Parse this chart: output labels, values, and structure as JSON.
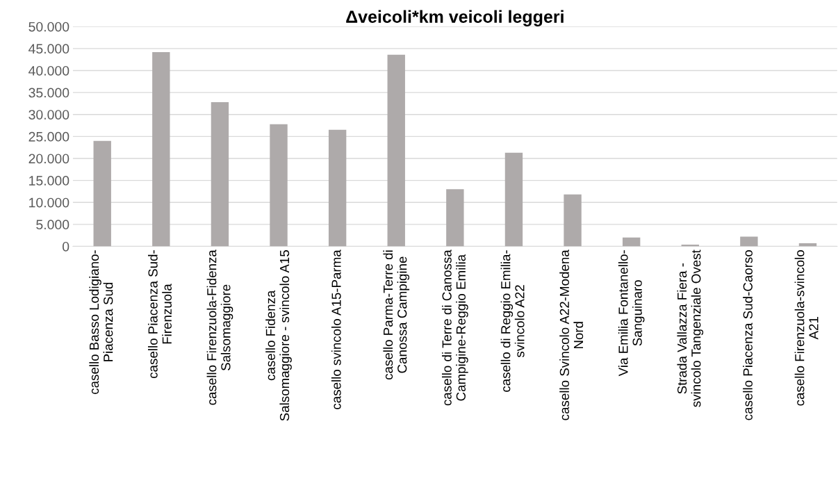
{
  "chart_data": {
    "type": "bar",
    "title": "Δveicoli*km veicoli leggeri",
    "categories": [
      "casello Basso Lodigiano-\nPiacenza Sud",
      "casello Piacenza Sud-\nFirenzuola",
      "casello Firenzuola-Fidenza\nSalsomaggiore",
      "casello Fidenza\nSalsomaggiore - svincolo A15",
      "casello svincolo A15-Parma",
      "casello Parma-Terre di\nCanossa Campigine",
      "casello di Terre di Canossa\nCampigine-Reggio Emilia",
      "casello di Reggio Emilia-\nsvincolo A22",
      "casello Svincolo A22-Modena\nNord",
      "Via Emilia Fontanello-\nSanguinaro",
      "Strada Vallazza Fiera -\nsvincolo Tangenziale Ovest",
      "casello Piacenza Sud-Caorso",
      "casello Firenzuola-svincolo\nA21"
    ],
    "values": [
      24000,
      44200,
      32800,
      27800,
      26500,
      43600,
      13000,
      21300,
      11800,
      2000,
      400,
      2200,
      700
    ],
    "color": "#aeaaaa",
    "ylim": [
      0,
      50000
    ],
    "yticks": [
      0,
      {
        "value": 5000,
        "label": "5.000"
      },
      {
        "value": 10000,
        "label": "10.000"
      },
      {
        "value": 15000,
        "label": "15.000"
      },
      {
        "value": 20000,
        "label": "20.000"
      },
      {
        "value": 25000,
        "label": "25.000"
      },
      {
        "value": 30000,
        "label": "30.000"
      },
      {
        "value": 35000,
        "label": "35.000"
      },
      {
        "value": 40000,
        "label": "40.000"
      },
      {
        "value": 45000,
        "label": "45.000"
      },
      {
        "value": 50000,
        "label": "50.000"
      }
    ],
    "grid": "y",
    "legend": false
  }
}
